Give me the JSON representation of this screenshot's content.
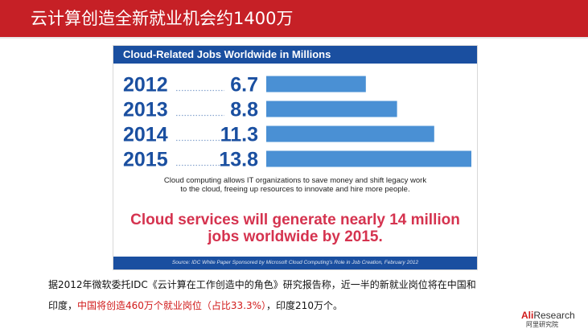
{
  "header": {
    "title": "云计算创造全新就业机会约1400万"
  },
  "colors": {
    "header_red": "#c62026",
    "chart_blue": "#1a4fa0",
    "bar_blue": "#4a90d4",
    "headline_red": "#d5334f",
    "highlight_red": "#d11a1a"
  },
  "chart_data": {
    "type": "bar",
    "orientation": "horizontal",
    "title": "Cloud-Related Jobs Worldwide in Millions",
    "categories": [
      "2012",
      "2013",
      "2014",
      "2015"
    ],
    "values": [
      6.7,
      8.8,
      11.3,
      13.8
    ],
    "value_labels": [
      "6.7",
      "8.8",
      "11.3",
      "13.8"
    ],
    "xlabel": "",
    "ylabel": "",
    "xlim": [
      0,
      13.8
    ],
    "grid": false,
    "legend": "none",
    "caption": "Cloud computing allows IT organizations to save money and shift legacy work to the cloud, freeing up resources to innovate and hire more people.",
    "headline": "Cloud services will generate nearly 14 million jobs worldwide by 2015.",
    "source": "Source: IDC White Paper Sponsored by Microsoft Cloud Computing's Role in Job Creation, February 2012"
  },
  "body": {
    "line1": "据2012年微软委托IDC《云计算在工作创造中的角色》研究报告称，近一半的新就业岗位将在中国和",
    "line2_prefix": "印度，",
    "line2_highlight": "中国将创造460万个就业岗位（占比33.3%）",
    "line2_suffix": "，印度210万个。"
  },
  "logo": {
    "ali": "Ali",
    "research": "Research",
    "sub": "阿里研究院"
  }
}
